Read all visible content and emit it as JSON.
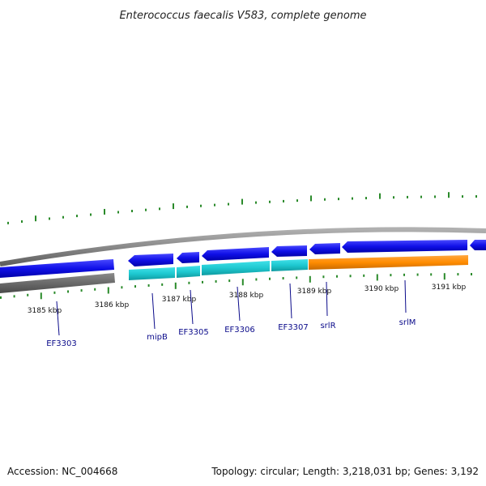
{
  "title": "Enterococcus faecalis V583, complete genome",
  "footer": {
    "accession": "Accession: NC_004668",
    "summary": "Topology: circular; Length: 3,218,031 bp; Genes: 3,192"
  },
  "colors": {
    "forward_gene": "#1010e8",
    "reverse_cyan_gene": "#1ec8d0",
    "reverse_orange_gene": "#ff8c00",
    "backbone": "#8a8a8a",
    "ticks": "#2a8a2a",
    "label_line": "#0a0a8a"
  },
  "kbp_labels": [
    "3185 kbp",
    "3186 kbp",
    "3187 kbp",
    "3188 kbp",
    "3189 kbp",
    "3190 kbp",
    "3191 kbp"
  ],
  "genes": [
    {
      "name": "EF3303",
      "label": "EF3303"
    },
    {
      "name": "mipB",
      "label": "mipB"
    },
    {
      "name": "EF3305",
      "label": "EF3305"
    },
    {
      "name": "EF3306",
      "label": "EF3306"
    },
    {
      "name": "EF3307",
      "label": "EF3307"
    },
    {
      "name": "srlR",
      "label": "srlR"
    },
    {
      "name": "srlM",
      "label": "srlM"
    }
  ]
}
